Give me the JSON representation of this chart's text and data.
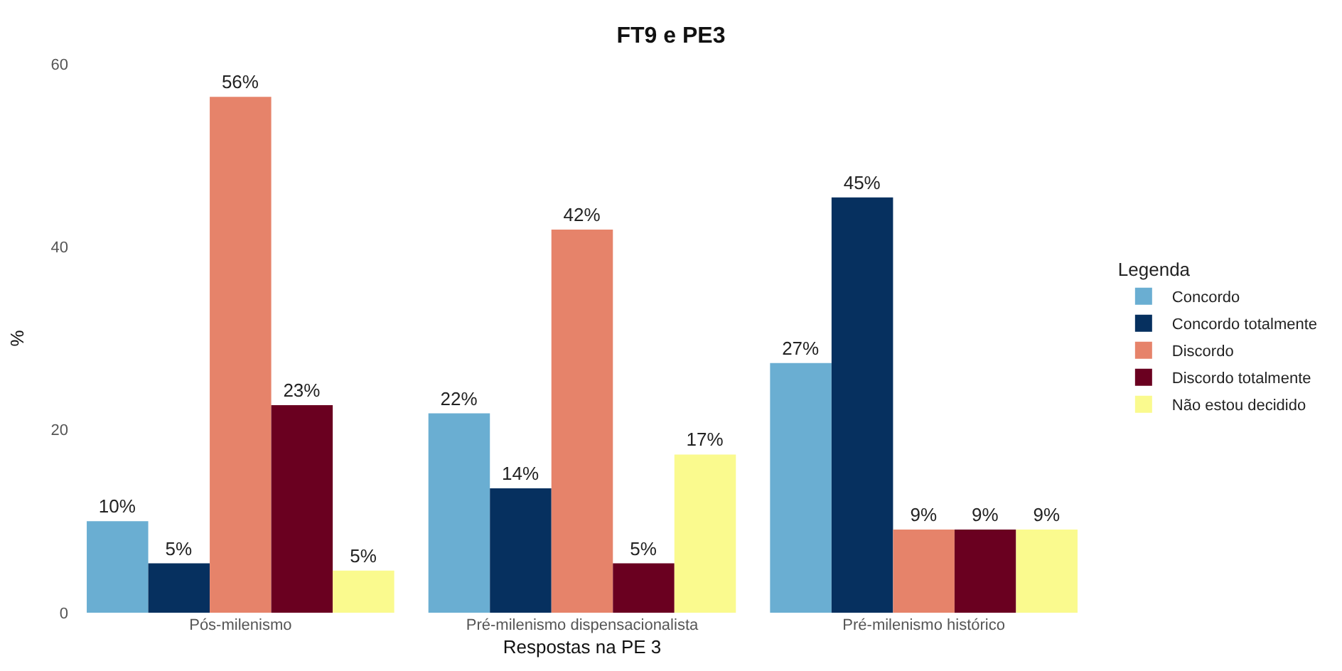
{
  "chart_data": {
    "type": "bar",
    "title": "FT9 e PE3",
    "xlabel": "Respostas na PE 3",
    "ylabel": "%",
    "legend_title": "Legenda",
    "categories": [
      "Pós-milenismo",
      "Pré-milenismo dispensacionalista",
      "Pré-milenismo histórico"
    ],
    "series": [
      {
        "name": "Concordo",
        "color": "#6aaed2",
        "values": [
          10.0,
          21.8,
          27.3
        ],
        "value_labels": [
          "10%",
          "22%",
          "27%"
        ]
      },
      {
        "name": "Concordo totalmente",
        "color": "#06305f",
        "values": [
          5.4,
          13.6,
          45.4
        ],
        "value_labels": [
          "5%",
          "14%",
          "45%"
        ]
      },
      {
        "name": "Discordo",
        "color": "#e6836a",
        "values": [
          56.4,
          41.9,
          9.1
        ],
        "value_labels": [
          "56%",
          "42%",
          "9%"
        ]
      },
      {
        "name": "Discordo totalmente",
        "color": "#6a0020",
        "values": [
          22.7,
          5.4,
          9.1
        ],
        "value_labels": [
          "23%",
          "5%",
          "9%"
        ]
      },
      {
        "name": "Não estou decidido",
        "color": "#fafa8e",
        "values": [
          4.6,
          17.3,
          9.1
        ],
        "value_labels": [
          "5%",
          "17%",
          "9%"
        ]
      }
    ],
    "ylim": [
      0,
      60
    ],
    "yticks": [
      0,
      20,
      40,
      60
    ],
    "legend": "right"
  }
}
